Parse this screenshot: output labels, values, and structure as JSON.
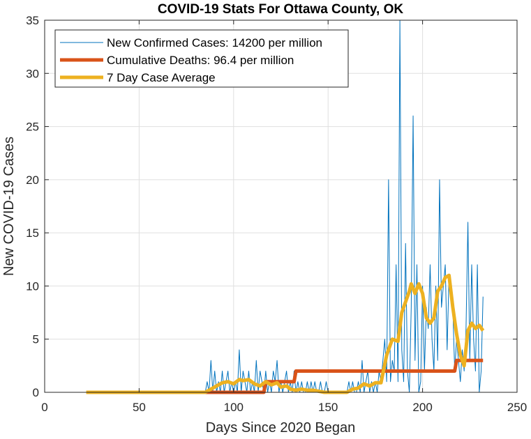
{
  "chart_data": {
    "type": "line",
    "title": "COVID-19 Stats For Ottawa County, OK",
    "xlabel": "Days Since 2020 Began",
    "ylabel": "New COVID-19 Cases",
    "xlim": [
      0,
      250
    ],
    "ylim": [
      0,
      35
    ],
    "xticks": [
      0,
      50,
      100,
      150,
      200,
      250
    ],
    "yticks": [
      0,
      5,
      10,
      15,
      20,
      25,
      30,
      35
    ],
    "grid": true,
    "legend_position": "top-left",
    "series": [
      {
        "name": "New Confirmed Cases: 14200 per million",
        "color": "#0072BD",
        "line_width": "thin",
        "points": [
          [
            22,
            0
          ],
          [
            85,
            0
          ],
          [
            86,
            1
          ],
          [
            87,
            0
          ],
          [
            88,
            3
          ],
          [
            89,
            0
          ],
          [
            90,
            2
          ],
          [
            91,
            0
          ],
          [
            92,
            1
          ],
          [
            93,
            0
          ],
          [
            94,
            2
          ],
          [
            95,
            0
          ],
          [
            96,
            1
          ],
          [
            97,
            2
          ],
          [
            98,
            0
          ],
          [
            99,
            1
          ],
          [
            100,
            0
          ],
          [
            101,
            1
          ],
          [
            102,
            0
          ],
          [
            103,
            4
          ],
          [
            104,
            0
          ],
          [
            105,
            2
          ],
          [
            106,
            1
          ],
          [
            107,
            0
          ],
          [
            108,
            2
          ],
          [
            109,
            0
          ],
          [
            110,
            1
          ],
          [
            111,
            0
          ],
          [
            112,
            3
          ],
          [
            113,
            0
          ],
          [
            114,
            2
          ],
          [
            115,
            1
          ],
          [
            116,
            0
          ],
          [
            117,
            2
          ],
          [
            118,
            0
          ],
          [
            119,
            1
          ],
          [
            120,
            0
          ],
          [
            121,
            2
          ],
          [
            122,
            1
          ],
          [
            123,
            3
          ],
          [
            124,
            0
          ],
          [
            125,
            1
          ],
          [
            126,
            0
          ],
          [
            127,
            1
          ],
          [
            128,
            2
          ],
          [
            129,
            0
          ],
          [
            130,
            1
          ],
          [
            131,
            0
          ],
          [
            132,
            2
          ],
          [
            133,
            0
          ],
          [
            134,
            1
          ],
          [
            135,
            0
          ],
          [
            136,
            1
          ],
          [
            137,
            0
          ],
          [
            138,
            0
          ],
          [
            139,
            1
          ],
          [
            140,
            0
          ],
          [
            141,
            1
          ],
          [
            142,
            0
          ],
          [
            143,
            1
          ],
          [
            144,
            0
          ],
          [
            145,
            0
          ],
          [
            146,
            1
          ],
          [
            147,
            0
          ],
          [
            148,
            0
          ],
          [
            149,
            1
          ],
          [
            150,
            0
          ],
          [
            160,
            0
          ],
          [
            161,
            1
          ],
          [
            162,
            0
          ],
          [
            163,
            1
          ],
          [
            164,
            0
          ],
          [
            165,
            0
          ],
          [
            166,
            1
          ],
          [
            167,
            0
          ],
          [
            168,
            3
          ],
          [
            169,
            0
          ],
          [
            170,
            1
          ],
          [
            171,
            2
          ],
          [
            172,
            0
          ],
          [
            173,
            1
          ],
          [
            174,
            0
          ],
          [
            175,
            1
          ],
          [
            176,
            0
          ],
          [
            177,
            2
          ],
          [
            178,
            1
          ],
          [
            179,
            3
          ],
          [
            180,
            5
          ],
          [
            181,
            1
          ],
          [
            182,
            20
          ],
          [
            183,
            1
          ],
          [
            184,
            3
          ],
          [
            185,
            2
          ],
          [
            186,
            12
          ],
          [
            187,
            1
          ],
          [
            188,
            35
          ],
          [
            189,
            4
          ],
          [
            190,
            1
          ],
          [
            191,
            14
          ],
          [
            192,
            2
          ],
          [
            193,
            0
          ],
          [
            194,
            8
          ],
          [
            195,
            26
          ],
          [
            196,
            3
          ],
          [
            197,
            12
          ],
          [
            198,
            0
          ],
          [
            199,
            1
          ],
          [
            200,
            10
          ],
          [
            201,
            2
          ],
          [
            202,
            8
          ],
          [
            203,
            6
          ],
          [
            204,
            12
          ],
          [
            205,
            5
          ],
          [
            206,
            2
          ],
          [
            207,
            10
          ],
          [
            208,
            3
          ],
          [
            209,
            20
          ],
          [
            210,
            8
          ],
          [
            211,
            10
          ],
          [
            212,
            12
          ],
          [
            213,
            4
          ],
          [
            214,
            11
          ],
          [
            215,
            9
          ],
          [
            216,
            8
          ],
          [
            217,
            2
          ],
          [
            218,
            5
          ],
          [
            219,
            3
          ],
          [
            220,
            1
          ],
          [
            221,
            4
          ],
          [
            222,
            2
          ],
          [
            223,
            6
          ],
          [
            224,
            16
          ],
          [
            225,
            3
          ],
          [
            226,
            12
          ],
          [
            227,
            5
          ],
          [
            228,
            2
          ],
          [
            229,
            12
          ],
          [
            230,
            0
          ],
          [
            231,
            2
          ],
          [
            232,
            9
          ]
        ]
      },
      {
        "name": "Cumulative Deaths: 96.4 per million",
        "color": "#D95319",
        "line_width": "thick",
        "points": [
          [
            85,
            0
          ],
          [
            116,
            0
          ],
          [
            117,
            1
          ],
          [
            132,
            1
          ],
          [
            133,
            2
          ],
          [
            217,
            2
          ],
          [
            218,
            3
          ],
          [
            232,
            3
          ]
        ]
      },
      {
        "name": "7 Day Case Average",
        "color": "#EDB120",
        "line_width": "thick",
        "points": [
          [
            22,
            0
          ],
          [
            85,
            0
          ],
          [
            88,
            0.3
          ],
          [
            91,
            0.6
          ],
          [
            94,
            0.9
          ],
          [
            97,
            1.0
          ],
          [
            100,
            0.8
          ],
          [
            103,
            1.2
          ],
          [
            105,
            1.1
          ],
          [
            108,
            1.2
          ],
          [
            111,
            0.8
          ],
          [
            114,
            0.6
          ],
          [
            117,
            1.0
          ],
          [
            120,
            0.7
          ],
          [
            123,
            0.9
          ],
          [
            125,
            0.5
          ],
          [
            128,
            0.6
          ],
          [
            130,
            0.3
          ],
          [
            133,
            0.2
          ],
          [
            136,
            0.3
          ],
          [
            139,
            0.2
          ],
          [
            142,
            0.2
          ],
          [
            145,
            0.1
          ],
          [
            148,
            0
          ],
          [
            160,
            0
          ],
          [
            163,
            0.3
          ],
          [
            166,
            0.4
          ],
          [
            169,
            0.8
          ],
          [
            172,
            0.6
          ],
          [
            175,
            0.9
          ],
          [
            178,
            0.9
          ],
          [
            181,
            3.5
          ],
          [
            184,
            5.0
          ],
          [
            187,
            4.8
          ],
          [
            189,
            7.5
          ],
          [
            191,
            8.5
          ],
          [
            193,
            9.5
          ],
          [
            194,
            10.2
          ],
          [
            196,
            9.3
          ],
          [
            198,
            10.2
          ],
          [
            200,
            9.3
          ],
          [
            202,
            7.0
          ],
          [
            204,
            6.5
          ],
          [
            206,
            7.0
          ],
          [
            208,
            9.5
          ],
          [
            210,
            10.0
          ],
          [
            212,
            10.8
          ],
          [
            214,
            11.0
          ],
          [
            216,
            8.0
          ],
          [
            218,
            5.5
          ],
          [
            220,
            3.5
          ],
          [
            222,
            2.5
          ],
          [
            224,
            5.8
          ],
          [
            226,
            6.5
          ],
          [
            228,
            6.0
          ],
          [
            230,
            6.3
          ],
          [
            232,
            5.8
          ]
        ]
      }
    ]
  }
}
